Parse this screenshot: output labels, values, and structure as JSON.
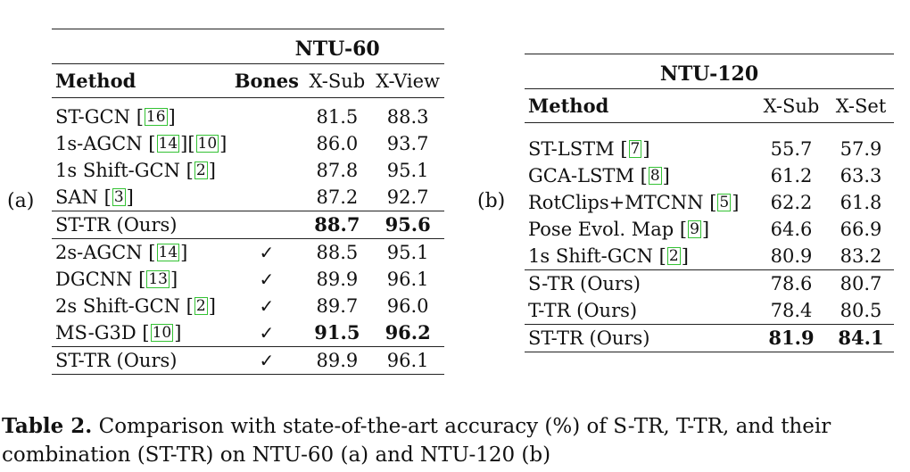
{
  "table_a": {
    "sublabel": "(a)",
    "title": "NTU-60",
    "headers": {
      "method": "Method",
      "bones": "Bones",
      "xsub": "X-Sub",
      "xview": "X-View"
    },
    "group1": [
      {
        "method": "ST-GCN ",
        "cites": [
          "16"
        ],
        "bones": "",
        "xsub": "81.5",
        "xview": "88.3"
      },
      {
        "method": "1s-AGCN ",
        "cites": [
          "14",
          "10"
        ],
        "bones": "",
        "xsub": "86.0",
        "xview": "93.7"
      },
      {
        "method": "1s Shift-GCN ",
        "cites": [
          "2"
        ],
        "bones": "",
        "xsub": "87.8",
        "xview": "95.1"
      },
      {
        "method": "SAN ",
        "cites": [
          "3"
        ],
        "bones": "",
        "xsub": "87.2",
        "xview": "92.7"
      }
    ],
    "ours1": {
      "method": "ST-TR (Ours)",
      "bones": "",
      "xsub": "88.7",
      "xview": "95.6"
    },
    "group2": [
      {
        "method": "2s-AGCN ",
        "cites": [
          "14"
        ],
        "bones": "✓",
        "xsub": "88.5",
        "xview": "95.1"
      },
      {
        "method": "DGCNN ",
        "cites": [
          "13"
        ],
        "bones": "✓",
        "xsub": "89.9",
        "xview": "96.1"
      },
      {
        "method": "2s Shift-GCN ",
        "cites": [
          "2"
        ],
        "bones": "✓",
        "xsub": "89.7",
        "xview": "96.0"
      },
      {
        "method": "MS-G3D ",
        "cites": [
          "10"
        ],
        "bones": "✓",
        "xsub": "91.5",
        "xview": "96.2",
        "bold": true
      }
    ],
    "ours2": {
      "method": "ST-TR (Ours)",
      "bones": "✓",
      "xsub": "89.9",
      "xview": "96.1"
    }
  },
  "table_b": {
    "sublabel": "(b)",
    "title": "NTU-120",
    "headers": {
      "method": "Method",
      "xsub": "X-Sub",
      "xset": "X-Set"
    },
    "group1": [
      {
        "method": "ST-LSTM ",
        "cites": [
          "7"
        ],
        "xsub": "55.7",
        "xset": "57.9"
      },
      {
        "method": "GCA-LSTM ",
        "cites": [
          "8"
        ],
        "xsub": "61.2",
        "xset": "63.3"
      },
      {
        "method": "RotClips+MTCNN ",
        "cites": [
          "5"
        ],
        "xsub": "62.2",
        "xset": "61.8"
      },
      {
        "method": "Pose Evol. Map ",
        "cites": [
          "9"
        ],
        "xsub": "64.6",
        "xset": "66.9"
      },
      {
        "method": "1s Shift-GCN ",
        "cites": [
          "2"
        ],
        "xsub": "80.9",
        "xset": "83.2"
      }
    ],
    "group2": [
      {
        "method": "S-TR (Ours)",
        "xsub": "78.6",
        "xset": "80.7"
      },
      {
        "method": "T-TR (Ours)",
        "xsub": "78.4",
        "xset": "80.5"
      }
    ],
    "ours": {
      "method": "ST-TR (Ours)",
      "xsub": "81.9",
      "xset": "84.1"
    }
  },
  "caption": {
    "label": "Table 2.",
    "text": " Comparison with state-of-the-art accuracy (%) of S-TR, T-TR, and their combination (ST-TR) on NTU-60 (a) and NTU-120 (b)"
  }
}
